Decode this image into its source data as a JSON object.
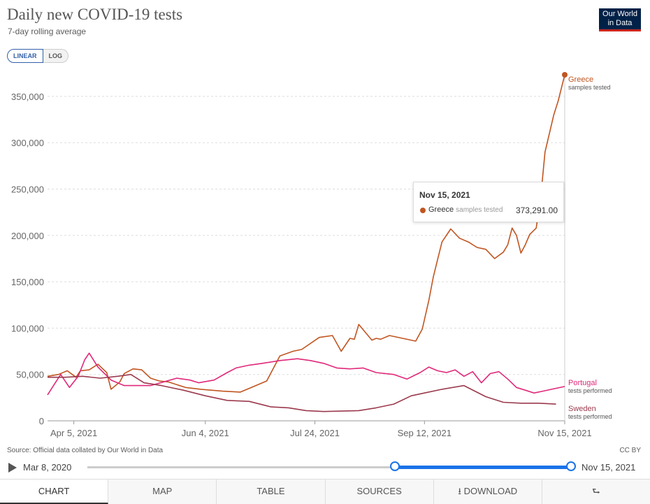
{
  "header": {
    "title": "Daily new COVID-19 tests",
    "subtitle": "7-day rolling average",
    "logo_line1": "Our World",
    "logo_line2": "in Data"
  },
  "scale_toggle": {
    "linear": "LINEAR",
    "log": "LOG",
    "selected": "LINEAR"
  },
  "tooltip": {
    "date": "Nov 15, 2021",
    "series": "Greece",
    "metric": "samples tested",
    "value": "373,291.00"
  },
  "footer": {
    "source": "Source: Official data collated by Our World in Data",
    "license": "CC BY"
  },
  "timeline": {
    "start": "Mar 8, 2020",
    "end": "Nov 15, 2021"
  },
  "tabs": [
    "CHART",
    "MAP",
    "TABLE",
    "SOURCES",
    "DOWNLOAD",
    ""
  ],
  "chart_data": {
    "type": "line",
    "title": "Daily new COVID-19 tests",
    "subtitle": "7-day rolling average",
    "ylim": [
      0,
      373291
    ],
    "yticks": [
      0,
      50000,
      100000,
      150000,
      200000,
      250000,
      300000,
      350000
    ],
    "ytick_labels": [
      "0",
      "50,000",
      "100,000",
      "150,000",
      "200,000",
      "250,000",
      "300,000",
      "350,000"
    ],
    "xlim": [
      "2021-03-24",
      "2021-11-15"
    ],
    "xticks": [
      "2021-04-05",
      "2021-06-04",
      "2021-07-24",
      "2021-09-12",
      "2021-11-15"
    ],
    "xtick_labels": [
      "Apr 5, 2021",
      "Jun 4, 2021",
      "Jul 24, 2021",
      "Sep 12, 2021",
      "Nov 15, 2021"
    ],
    "grid": "horizontal dashed",
    "colors": {
      "Greece": "#c15521",
      "Portugal": "#e0287a",
      "Sweden": "#9b3a4d"
    },
    "series": [
      {
        "name": "Greece",
        "label_sub": "samples tested",
        "x": [
          "2021-03-24",
          "2021-03-29",
          "2021-04-02",
          "2021-04-06",
          "2021-04-08",
          "2021-04-12",
          "2021-04-16",
          "2021-04-20",
          "2021-04-22",
          "2021-04-26",
          "2021-04-28",
          "2021-05-02",
          "2021-05-06",
          "2021-05-10",
          "2021-05-14",
          "2021-05-18",
          "2021-05-26",
          "2021-06-02",
          "2021-06-12",
          "2021-06-20",
          "2021-06-24",
          "2021-07-02",
          "2021-07-08",
          "2021-07-14",
          "2021-07-18",
          "2021-07-26",
          "2021-08-01",
          "2021-08-05",
          "2021-08-09",
          "2021-08-11",
          "2021-08-13",
          "2021-08-19",
          "2021-08-21",
          "2021-08-23",
          "2021-08-27",
          "2021-09-02",
          "2021-09-08",
          "2021-09-11",
          "2021-09-14",
          "2021-09-16",
          "2021-09-18",
          "2021-09-20",
          "2021-09-24",
          "2021-09-28",
          "2021-10-02",
          "2021-10-06",
          "2021-10-10",
          "2021-10-14",
          "2021-10-18",
          "2021-10-20",
          "2021-10-22",
          "2021-10-24",
          "2021-10-26",
          "2021-10-28",
          "2021-10-30",
          "2021-11-02",
          "2021-11-04",
          "2021-11-06",
          "2021-11-10",
          "2021-11-12",
          "2021-11-15"
        ],
        "values": [
          48000,
          50000,
          54000,
          47000,
          54000,
          55000,
          61000,
          52000,
          34000,
          42000,
          51000,
          56000,
          55000,
          46000,
          43000,
          42000,
          36000,
          34000,
          32000,
          31000,
          35000,
          43000,
          70000,
          75000,
          77000,
          90000,
          92000,
          75000,
          89000,
          88000,
          104000,
          87000,
          89000,
          88000,
          92000,
          89000,
          86000,
          99000,
          130000,
          155000,
          174000,
          193000,
          207000,
          197000,
          193000,
          187000,
          185000,
          175000,
          182000,
          190000,
          208000,
          200000,
          181000,
          190000,
          201000,
          208000,
          240000,
          290000,
          330000,
          345000,
          373291
        ]
      },
      {
        "name": "Portugal",
        "label_sub": "tests performed",
        "x": [
          "2021-03-24",
          "2021-03-30",
          "2021-04-03",
          "2021-04-07",
          "2021-04-10",
          "2021-04-12",
          "2021-04-16",
          "2021-04-22",
          "2021-04-28",
          "2021-05-04",
          "2021-05-10",
          "2021-05-16",
          "2021-05-22",
          "2021-05-28",
          "2021-06-01",
          "2021-06-08",
          "2021-06-14",
          "2021-06-18",
          "2021-06-24",
          "2021-06-30",
          "2021-07-08",
          "2021-07-16",
          "2021-07-22",
          "2021-07-28",
          "2021-08-03",
          "2021-08-09",
          "2021-08-15",
          "2021-08-21",
          "2021-08-29",
          "2021-09-04",
          "2021-09-10",
          "2021-09-14",
          "2021-09-18",
          "2021-09-22",
          "2021-09-26",
          "2021-09-30",
          "2021-10-04",
          "2021-10-08",
          "2021-10-12",
          "2021-10-16",
          "2021-10-20",
          "2021-10-24",
          "2021-10-28",
          "2021-11-01",
          "2021-11-05",
          "2021-11-09",
          "2021-11-15"
        ],
        "values": [
          28000,
          50000,
          36000,
          48000,
          66000,
          73000,
          58000,
          44000,
          38000,
          38000,
          38000,
          42000,
          46000,
          44000,
          41000,
          44000,
          52000,
          57000,
          60000,
          62000,
          65000,
          67000,
          65000,
          62000,
          57000,
          56000,
          57000,
          52000,
          50000,
          45000,
          52000,
          58000,
          54000,
          52000,
          55000,
          48000,
          53000,
          41000,
          51000,
          53000,
          45000,
          36000,
          33000,
          30000,
          32000,
          34000,
          37000
        ]
      },
      {
        "name": "Sweden",
        "label_sub": "tests performed",
        "x": [
          "2021-03-24",
          "2021-04-01",
          "2021-04-09",
          "2021-04-17",
          "2021-04-25",
          "2021-05-01",
          "2021-05-07",
          "2021-05-15",
          "2021-05-25",
          "2021-06-04",
          "2021-06-14",
          "2021-06-24",
          "2021-07-04",
          "2021-07-12",
          "2021-07-20",
          "2021-07-28",
          "2021-08-05",
          "2021-08-13",
          "2021-08-21",
          "2021-08-29",
          "2021-09-06",
          "2021-09-12",
          "2021-09-20",
          "2021-09-30",
          "2021-10-10",
          "2021-10-18",
          "2021-10-26",
          "2021-11-03",
          "2021-11-11"
        ],
        "values": [
          47000,
          47000,
          48000,
          46000,
          48000,
          50000,
          41000,
          38000,
          33000,
          27000,
          22000,
          21000,
          15000,
          14000,
          11000,
          10000,
          10500,
          11000,
          14000,
          18000,
          27000,
          30000,
          34000,
          38000,
          26000,
          20000,
          19000,
          19000,
          18000
        ]
      }
    ]
  }
}
